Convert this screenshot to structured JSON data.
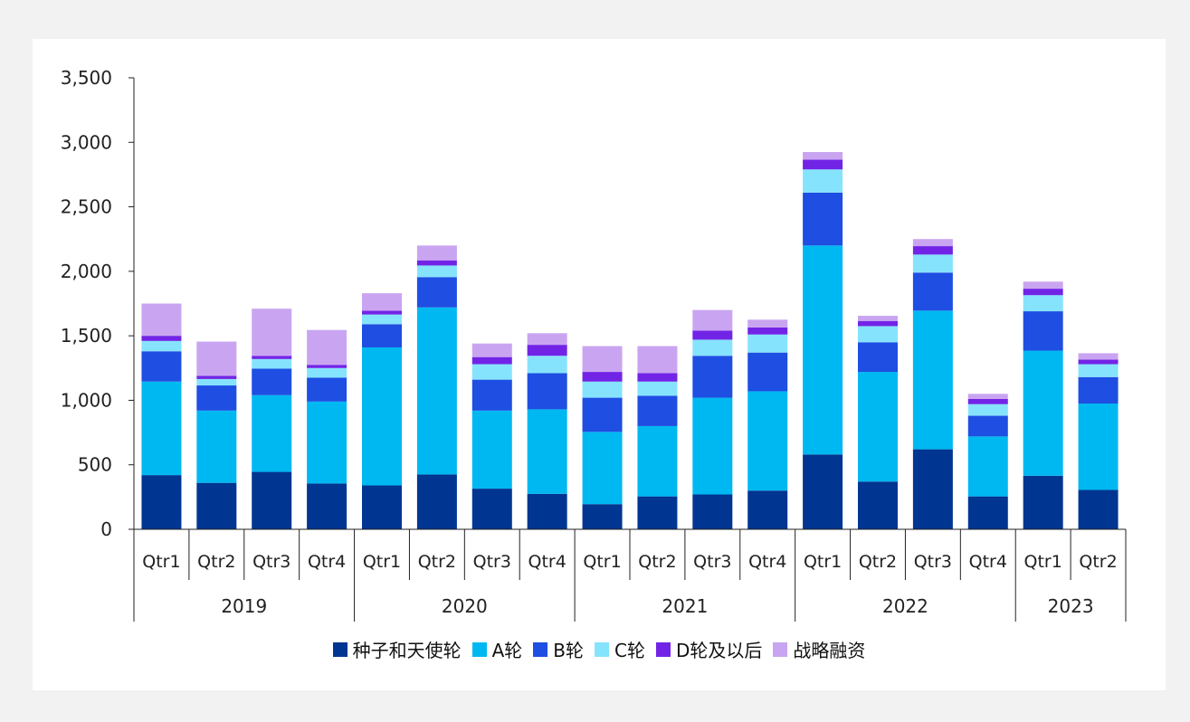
{
  "chart_data": {
    "type": "bar",
    "stacked": true,
    "title": "",
    "xlabel": "",
    "ylabel": "",
    "ylim": [
      0,
      3500
    ],
    "yticks": [
      0,
      500,
      1000,
      1500,
      2000,
      2500,
      3000,
      3500
    ],
    "ytick_labels": [
      "0",
      "500",
      "1,000",
      "1,500",
      "2,000",
      "2,500",
      "3,000",
      "3,500"
    ],
    "grid": false,
    "legend_position": "bottom",
    "years": [
      {
        "label": "2019",
        "quarters": 4
      },
      {
        "label": "2020",
        "quarters": 4
      },
      {
        "label": "2021",
        "quarters": 4
      },
      {
        "label": "2022",
        "quarters": 4
      },
      {
        "label": "2023",
        "quarters": 2
      }
    ],
    "categories": [
      "Qtr1",
      "Qtr2",
      "Qtr3",
      "Qtr4",
      "Qtr1",
      "Qtr2",
      "Qtr3",
      "Qtr4",
      "Qtr1",
      "Qtr2",
      "Qtr3",
      "Qtr4",
      "Qtr1",
      "Qtr2",
      "Qtr3",
      "Qtr4",
      "Qtr1",
      "Qtr2"
    ],
    "series": [
      {
        "name": "种子和天使轮",
        "color": "#003591",
        "values": [
          420,
          360,
          445,
          355,
          340,
          425,
          315,
          275,
          195,
          255,
          270,
          300,
          580,
          370,
          620,
          255,
          415,
          305
        ]
      },
      {
        "name": "A轮",
        "color": "#00b8f1",
        "values": [
          725,
          560,
          595,
          635,
          1070,
          1295,
          605,
          655,
          560,
          545,
          750,
          770,
          1620,
          850,
          1075,
          465,
          970,
          670
        ]
      },
      {
        "name": "B轮",
        "color": "#1e4ee2",
        "values": [
          235,
          195,
          205,
          185,
          180,
          235,
          240,
          280,
          265,
          235,
          325,
          300,
          410,
          230,
          295,
          160,
          305,
          205
        ]
      },
      {
        "name": "C轮",
        "color": "#86e3fd",
        "values": [
          80,
          50,
          75,
          75,
          75,
          90,
          120,
          135,
          125,
          110,
          125,
          140,
          180,
          125,
          140,
          90,
          125,
          100
        ]
      },
      {
        "name": "D轮及以后",
        "color": "#7224e6",
        "values": [
          40,
          25,
          25,
          25,
          30,
          40,
          55,
          85,
          75,
          65,
          70,
          55,
          75,
          40,
          65,
          40,
          50,
          35
        ]
      },
      {
        "name": "战略融资",
        "color": "#c9a5f1",
        "values": [
          250,
          265,
          365,
          270,
          135,
          115,
          105,
          90,
          200,
          210,
          160,
          60,
          60,
          40,
          55,
          40,
          55,
          50
        ]
      }
    ]
  }
}
